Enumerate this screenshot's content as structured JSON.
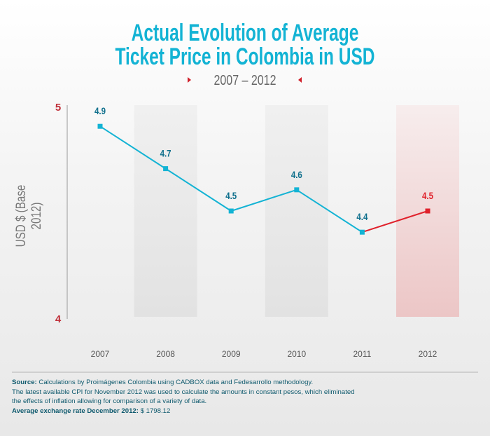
{
  "title_line1": "Actual Evolution of Average",
  "title_line2": "Ticket Price in Colombia in USD",
  "subtitle": "2007 – 2012",
  "colors": {
    "title": "#13b3d4",
    "line": "#13b3d4",
    "highlight": "#e0212b",
    "label": "#0e6f8c",
    "axis_tick": "#c0303a"
  },
  "chart_data": {
    "type": "line",
    "title": "Actual Evolution of Average Ticket Price in Colombia in USD",
    "subtitle": "2007 – 2012",
    "ylabel": "USD $ (Base 2012)",
    "xlabel": "",
    "categories": [
      "2007",
      "2008",
      "2009",
      "2010",
      "2011",
      "2012"
    ],
    "values": [
      4.9,
      4.7,
      4.5,
      4.6,
      4.4,
      4.5
    ],
    "data_labels": [
      "4.9",
      "4.7",
      "4.5",
      "4.6",
      "4.4",
      "4.5"
    ],
    "ylim": [
      4,
      5
    ],
    "y_ticks": [
      "4",
      "5"
    ],
    "highlight_category": "2012",
    "grid": false
  },
  "notes": {
    "source_label": "Source:",
    "source_text": " Calculations by Proimágenes Colombia using CADBOX data and Fedesarrollo methodology.",
    "cpi_line1": "The latest available CPI for November 2012 was used to calculate the amounts in constant pesos, which eliminated",
    "cpi_line2": "the effects of inflation allowing for comparison of a variety of data.",
    "rate_label": "Average exchange rate December 2012:",
    "rate_value": " $ 1798.12"
  }
}
